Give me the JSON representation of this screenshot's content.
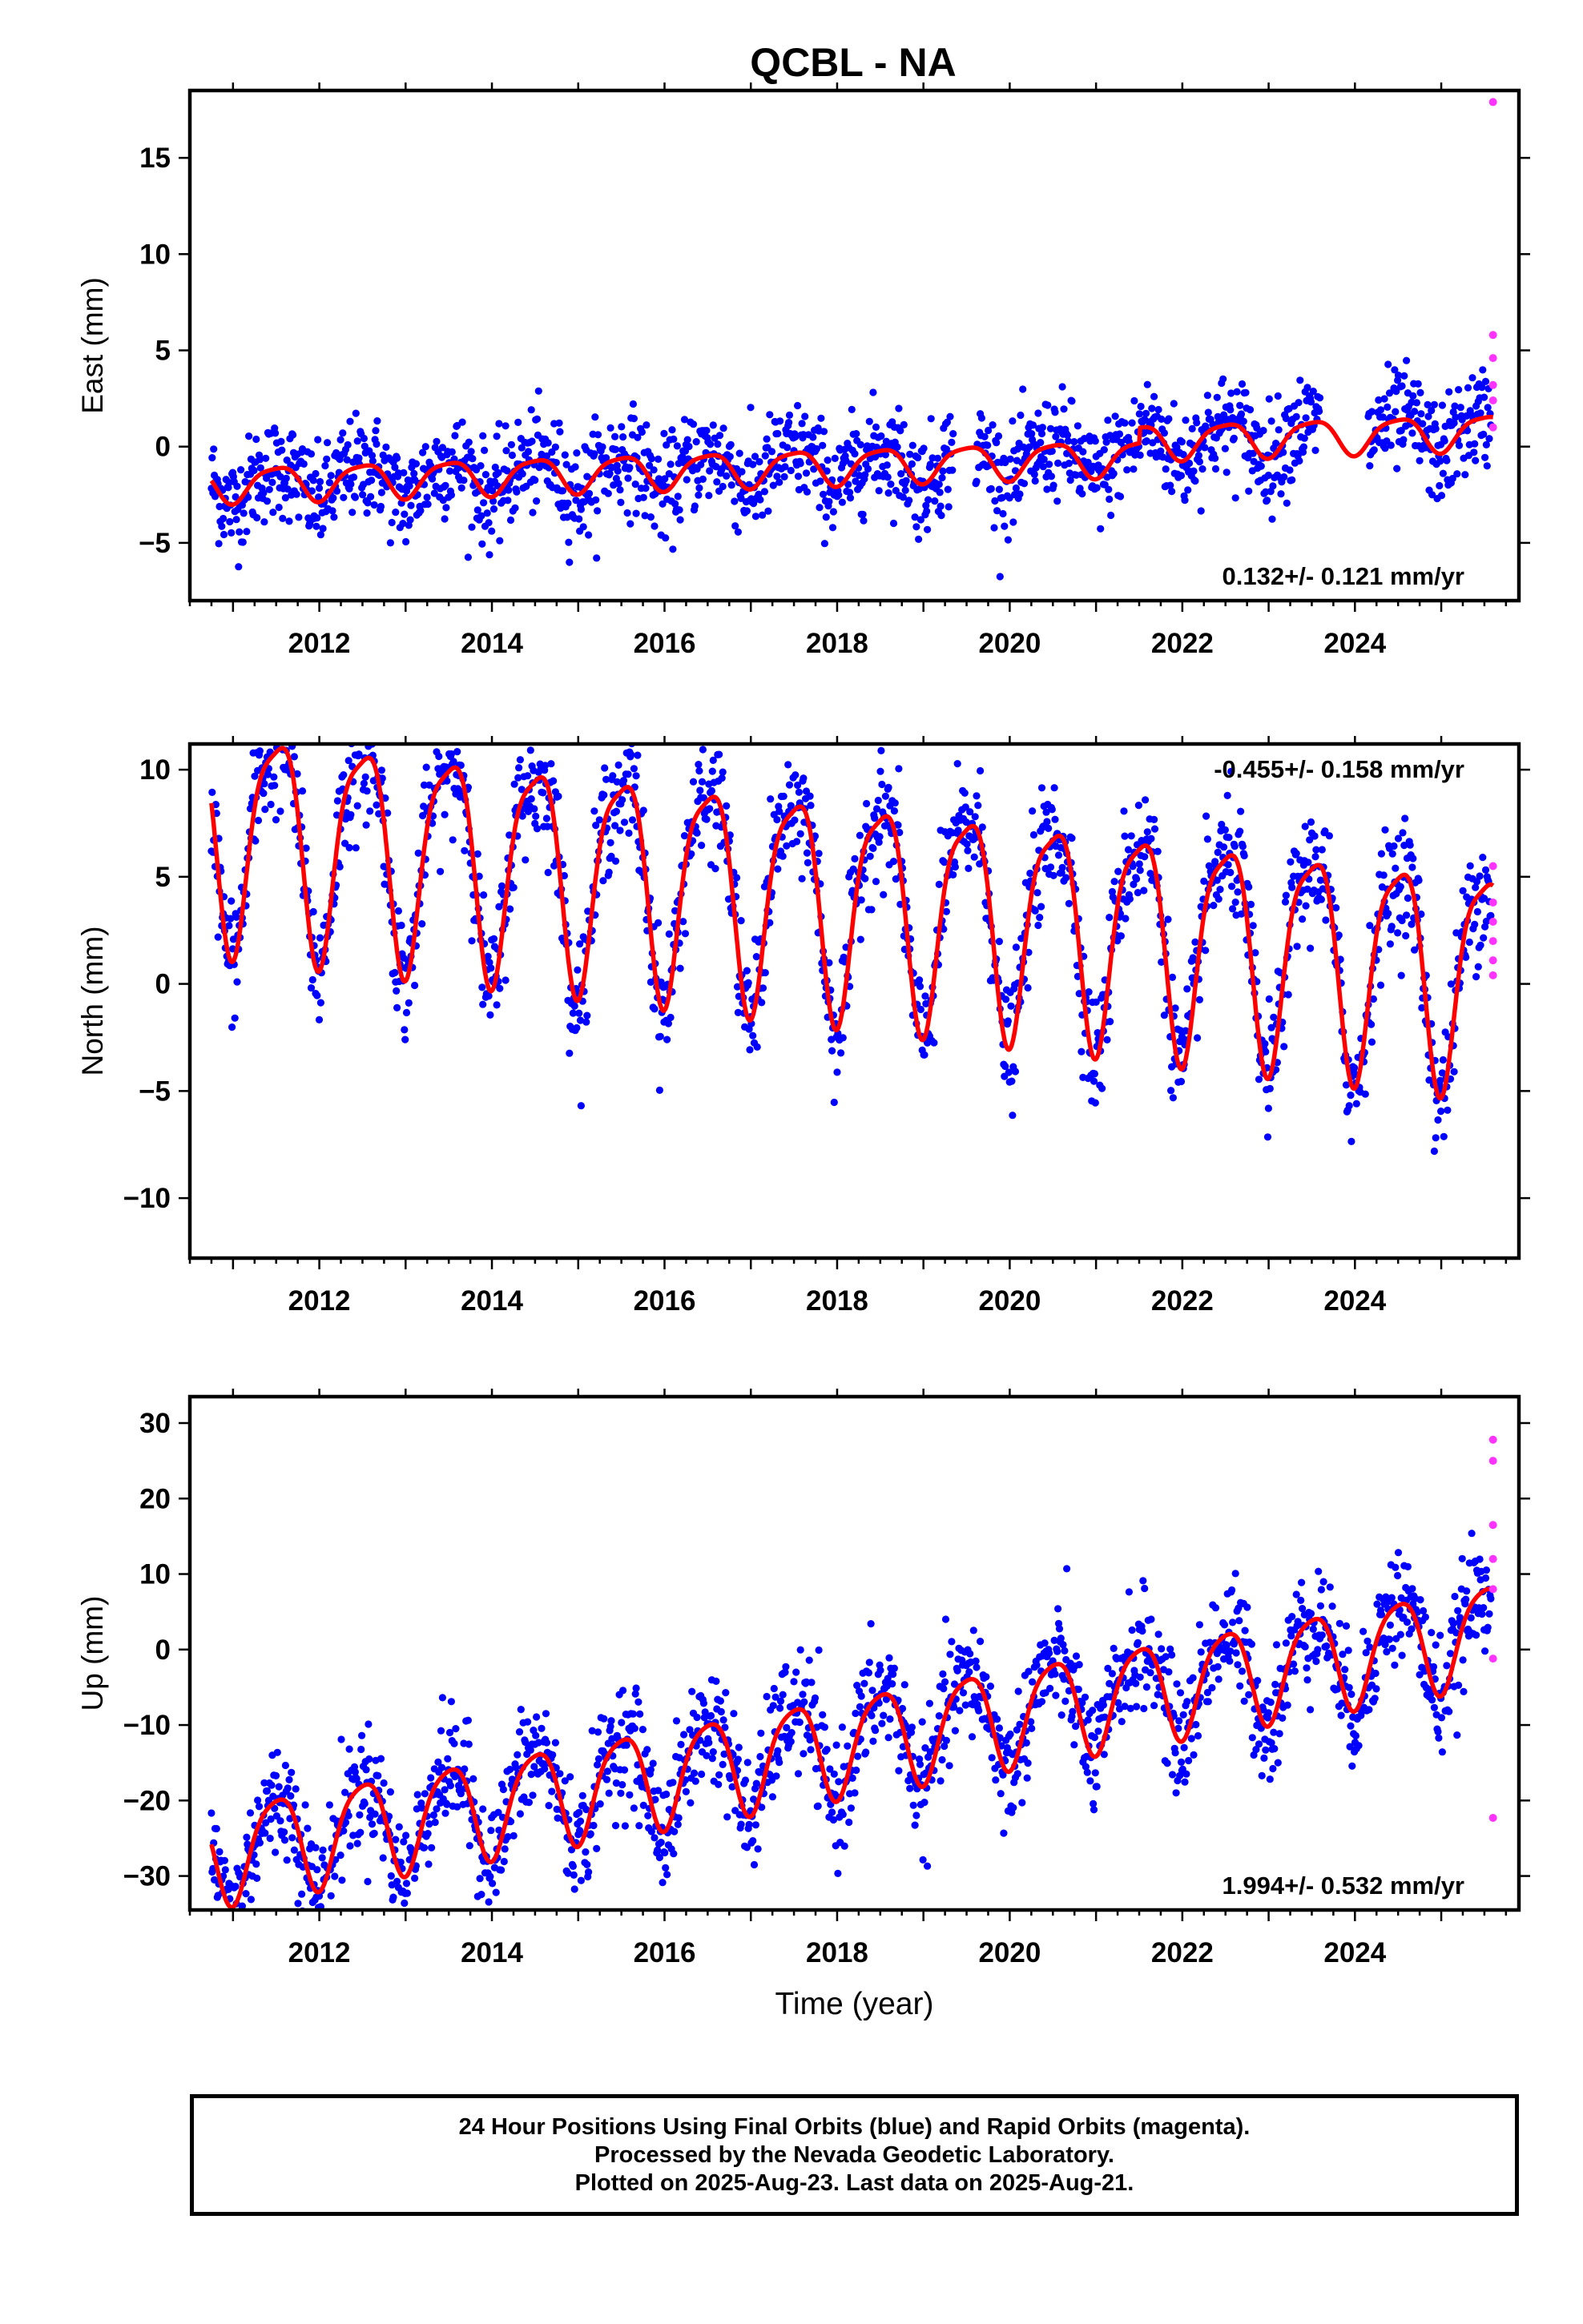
{
  "title": "QCBL - NA",
  "colors": {
    "final": "#0000ff",
    "rapid": "#ff33ff",
    "model": "#ff0000",
    "frame": "#000000"
  },
  "chart_data": [
    {
      "type": "scatter",
      "ylabel": "East (mm)",
      "xlabel": "",
      "xlim": [
        2010.5,
        2025.9
      ],
      "ylim": [
        -8,
        18.5
      ],
      "xticks": [
        "2012",
        "2014",
        "2016",
        "2018",
        "2020",
        "2022",
        "2024"
      ],
      "yticks": [
        "−5",
        "0",
        "5",
        "10",
        "15"
      ],
      "annotation": "0.132+/- 0.121 mm/yr",
      "annotation_position": "bottom-right",
      "model": {
        "start": 2010.75,
        "end": 2025.6,
        "offset": -1.0,
        "rate": 0.132,
        "annual_amplitude": 0.9,
        "semiannual_amplitude": 0.2,
        "gaps": [
          [
            2019.35,
            2019.6
          ],
          [
            2023.6,
            2024.15
          ]
        ],
        "steps": [
          [
            2021.5,
            0.8
          ]
        ]
      },
      "scatter_spread": 1.3,
      "rapid_points": [
        [
          2025.6,
          17.9
        ],
        [
          2025.6,
          5.8
        ],
        [
          2025.6,
          4.6
        ],
        [
          2025.6,
          3.2
        ],
        [
          2025.6,
          2.4
        ],
        [
          2025.6,
          1.0
        ]
      ]
    },
    {
      "type": "scatter",
      "ylabel": "North (mm)",
      "xlabel": "",
      "xlim": [
        2010.5,
        2025.9
      ],
      "ylim": [
        -12.8,
        11.2
      ],
      "xticks": [
        "2012",
        "2014",
        "2016",
        "2018",
        "2020",
        "2022",
        "2024"
      ],
      "yticks": [
        "−10",
        "−5",
        "0",
        "5",
        "10"
      ],
      "annotation": "-0.455+/- 0.158 mm/yr",
      "annotation_position": "top-right",
      "model": {
        "start": 2010.75,
        "end": 2025.6,
        "offset": 4.0,
        "rate": -0.455,
        "annual_amplitude": 5.0,
        "semiannual_amplitude": 1.2,
        "gaps": [],
        "steps": []
      },
      "scatter_spread": 1.4,
      "rapid_points": [
        [
          2025.6,
          5.5
        ],
        [
          2025.6,
          3.8
        ],
        [
          2025.6,
          2.9
        ],
        [
          2025.6,
          2.0
        ],
        [
          2025.6,
          1.1
        ],
        [
          2025.6,
          0.4
        ]
      ]
    },
    {
      "type": "scatter",
      "ylabel": "Up (mm)",
      "xlabel": "Time (year)",
      "xlim": [
        2010.5,
        2025.9
      ],
      "ylim": [
        -34.5,
        33.5
      ],
      "xticks": [
        "2012",
        "2014",
        "2016",
        "2018",
        "2020",
        "2022",
        "2024"
      ],
      "yticks": [
        "−30",
        "−20",
        "−10",
        "0",
        "10",
        "20",
        "30"
      ],
      "annotation": "1.994+/- 0.532 mm/yr",
      "annotation_position": "bottom-right",
      "model": {
        "start": 2010.75,
        "end": 2025.6,
        "offset": -12.5,
        "rate": 1.994,
        "annual_amplitude": 6.5,
        "semiannual_amplitude": 1.2,
        "gaps": [],
        "steps": []
      },
      "scatter_spread": 3.8,
      "rapid_points": [
        [
          2025.6,
          27.8
        ],
        [
          2025.6,
          25.0
        ],
        [
          2025.6,
          16.5
        ],
        [
          2025.6,
          12.0
        ],
        [
          2025.6,
          8.0
        ],
        [
          2025.6,
          -1.2
        ],
        [
          2025.6,
          -22.3
        ]
      ]
    }
  ],
  "caption": [
    "24 Hour Positions Using Final Orbits (blue) and Rapid Orbits (magenta).",
    "Processed by the Nevada Geodetic Laboratory.",
    "Plotted on 2025-Aug-23. Last data on 2025-Aug-21."
  ]
}
